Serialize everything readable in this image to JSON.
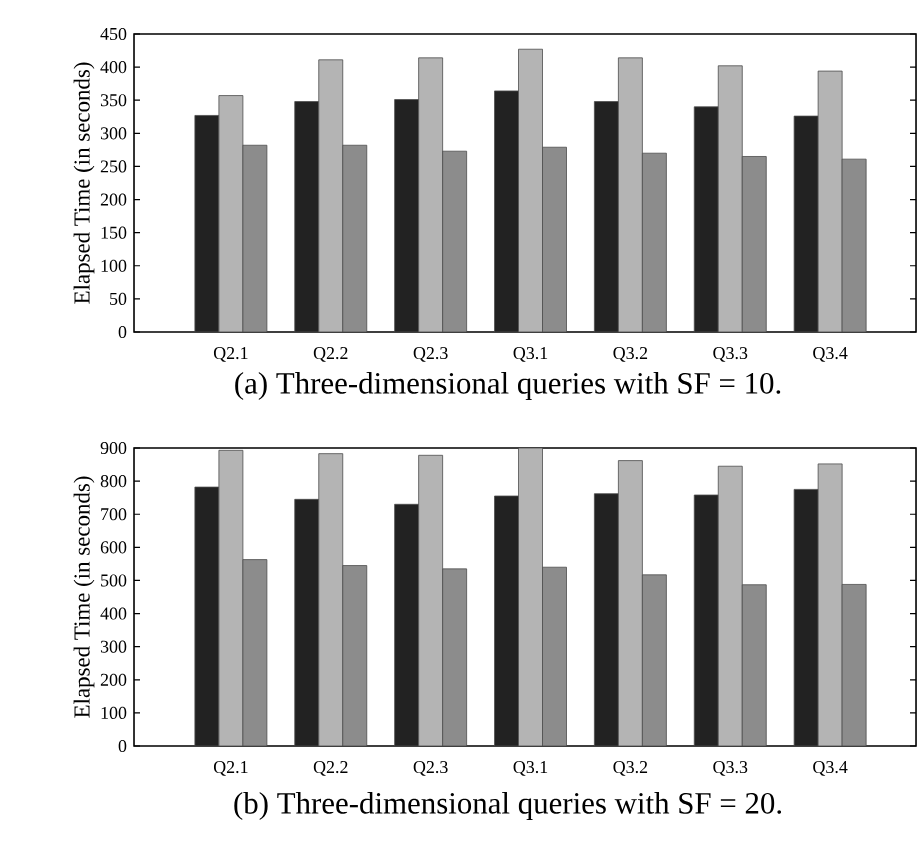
{
  "chart_data": [
    {
      "type": "bar",
      "title": "(a)  Three-dimensional queries with SF = 10.",
      "ylabel": "Elapsed Time (in seconds)",
      "categories": [
        "Q2.1",
        "Q2.2",
        "Q2.3",
        "Q3.1",
        "Q3.2",
        "Q3.3",
        "Q3.4"
      ],
      "ylim": [
        0,
        450
      ],
      "yticks": [
        0,
        50,
        100,
        150,
        200,
        250,
        300,
        350,
        400,
        450
      ],
      "series": [
        {
          "color": "#222222",
          "values": [
            327,
            348,
            351,
            364,
            348,
            340,
            326
          ]
        },
        {
          "color": "#b4b4b4",
          "values": [
            357,
            411,
            414,
            427,
            414,
            402,
            394
          ]
        },
        {
          "color": "#8c8c8c",
          "values": [
            282,
            282,
            273,
            279,
            270,
            265,
            261
          ]
        }
      ]
    },
    {
      "type": "bar",
      "title": "(b)  Three-dimensional queries with SF = 20.",
      "ylabel": "Elapsed Time (in seconds)",
      "categories": [
        "Q2.1",
        "Q2.2",
        "Q2.3",
        "Q3.1",
        "Q3.2",
        "Q3.3",
        "Q3.4"
      ],
      "ylim": [
        0,
        900
      ],
      "yticks": [
        0,
        100,
        200,
        300,
        400,
        500,
        600,
        700,
        800,
        900
      ],
      "series": [
        {
          "color": "#222222",
          "values": [
            782,
            745,
            730,
            755,
            762,
            758,
            775
          ]
        },
        {
          "color": "#b4b4b4",
          "values": [
            893,
            883,
            878,
            900,
            862,
            845,
            852
          ]
        },
        {
          "color": "#8c8c8c",
          "values": [
            563,
            545,
            535,
            540,
            517,
            487,
            488
          ]
        }
      ]
    }
  ]
}
